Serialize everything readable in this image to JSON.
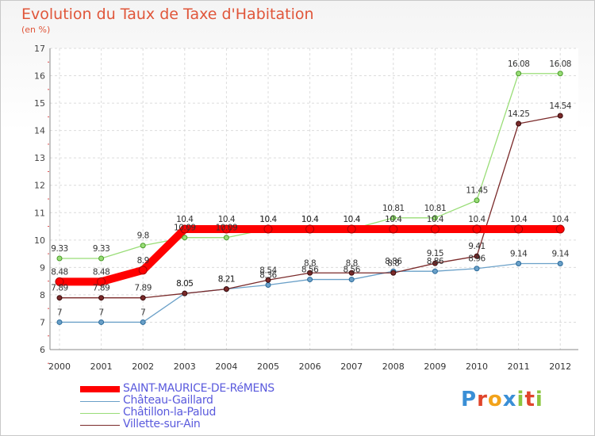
{
  "title": "Evolution du Taux de Taxe d'Habitation",
  "unit_label": "(en %)",
  "logo": {
    "text": "Proxiti",
    "letters": [
      "P",
      "r",
      "o",
      "x",
      "i",
      "t",
      "i"
    ],
    "colors": [
      "#3a8fd6",
      "#e0452b",
      "#f2a31b",
      "#3a8fd6",
      "#8cc63f",
      "#e0452b",
      "#8cc63f"
    ]
  },
  "chart_data": {
    "type": "line",
    "title": "Evolution du Taux de Taxe d'Habitation",
    "ylabel": "(en %)",
    "xlabel": "",
    "x": [
      "2000",
      "2001",
      "2002",
      "2003",
      "2004",
      "2005",
      "2006",
      "2007",
      "2008",
      "2009",
      "2010",
      "2011",
      "2012"
    ],
    "ylim": [
      6,
      17
    ],
    "yticks": [
      "6",
      "7",
      "8",
      "9",
      "10",
      "11",
      "12",
      "13",
      "14",
      "15",
      "16",
      "17"
    ],
    "grid": true,
    "legend_position": "bottom-left",
    "series": [
      {
        "name": "SAINT-MAURICE-DE-RéMENS",
        "color": "#ff0000",
        "emphasis": true,
        "values": [
          8.48,
          8.48,
          8.9,
          10.4,
          10.4,
          10.4,
          10.4,
          10.4,
          10.4,
          10.4,
          10.4,
          10.4,
          10.4
        ],
        "labels": [
          "8.48",
          "8.48",
          "8.9",
          "10.4",
          "10.4",
          "10.4",
          "10.4",
          "10.4",
          "10.4",
          "10.4",
          "10.4",
          "10.4",
          "10.4"
        ]
      },
      {
        "name": "Château-Gaillard",
        "color": "#6aa0c8",
        "values": [
          7,
          7,
          7,
          8.05,
          8.21,
          8.36,
          8.56,
          8.56,
          8.86,
          8.86,
          8.96,
          9.14,
          9.14
        ],
        "labels": [
          "7",
          "7",
          "7",
          "8.05",
          "8.21",
          "8.36",
          "8.56",
          "8.56",
          "8.86",
          "8.86",
          "8.96",
          "9.14",
          "9.14"
        ]
      },
      {
        "name": "Châtillon-la-Palud",
        "color": "#99dd77",
        "values": [
          9.33,
          9.33,
          9.8,
          10.09,
          10.09,
          10.4,
          10.4,
          10.4,
          10.81,
          10.81,
          11.45,
          16.08,
          16.08
        ],
        "labels": [
          "9.33",
          "9.33",
          "9.8",
          "10.09",
          "10.09",
          "10.4",
          "10.4",
          "10.4",
          "10.81",
          "10.81",
          "11.45",
          "16.08",
          "16.08"
        ]
      },
      {
        "name": "Villette-sur-Ain",
        "color": "#7a2a2a",
        "values": [
          7.89,
          7.89,
          7.89,
          8.05,
          8.21,
          8.54,
          8.8,
          8.8,
          8.8,
          9.15,
          9.41,
          14.25,
          14.54
        ],
        "labels": [
          "7.89",
          "7.89",
          "7.89",
          "8.05",
          "8.21",
          "8.54",
          "8.8",
          "8.8",
          "8.8",
          "9.15",
          "9.41",
          "14.25",
          "14.54"
        ]
      }
    ]
  }
}
